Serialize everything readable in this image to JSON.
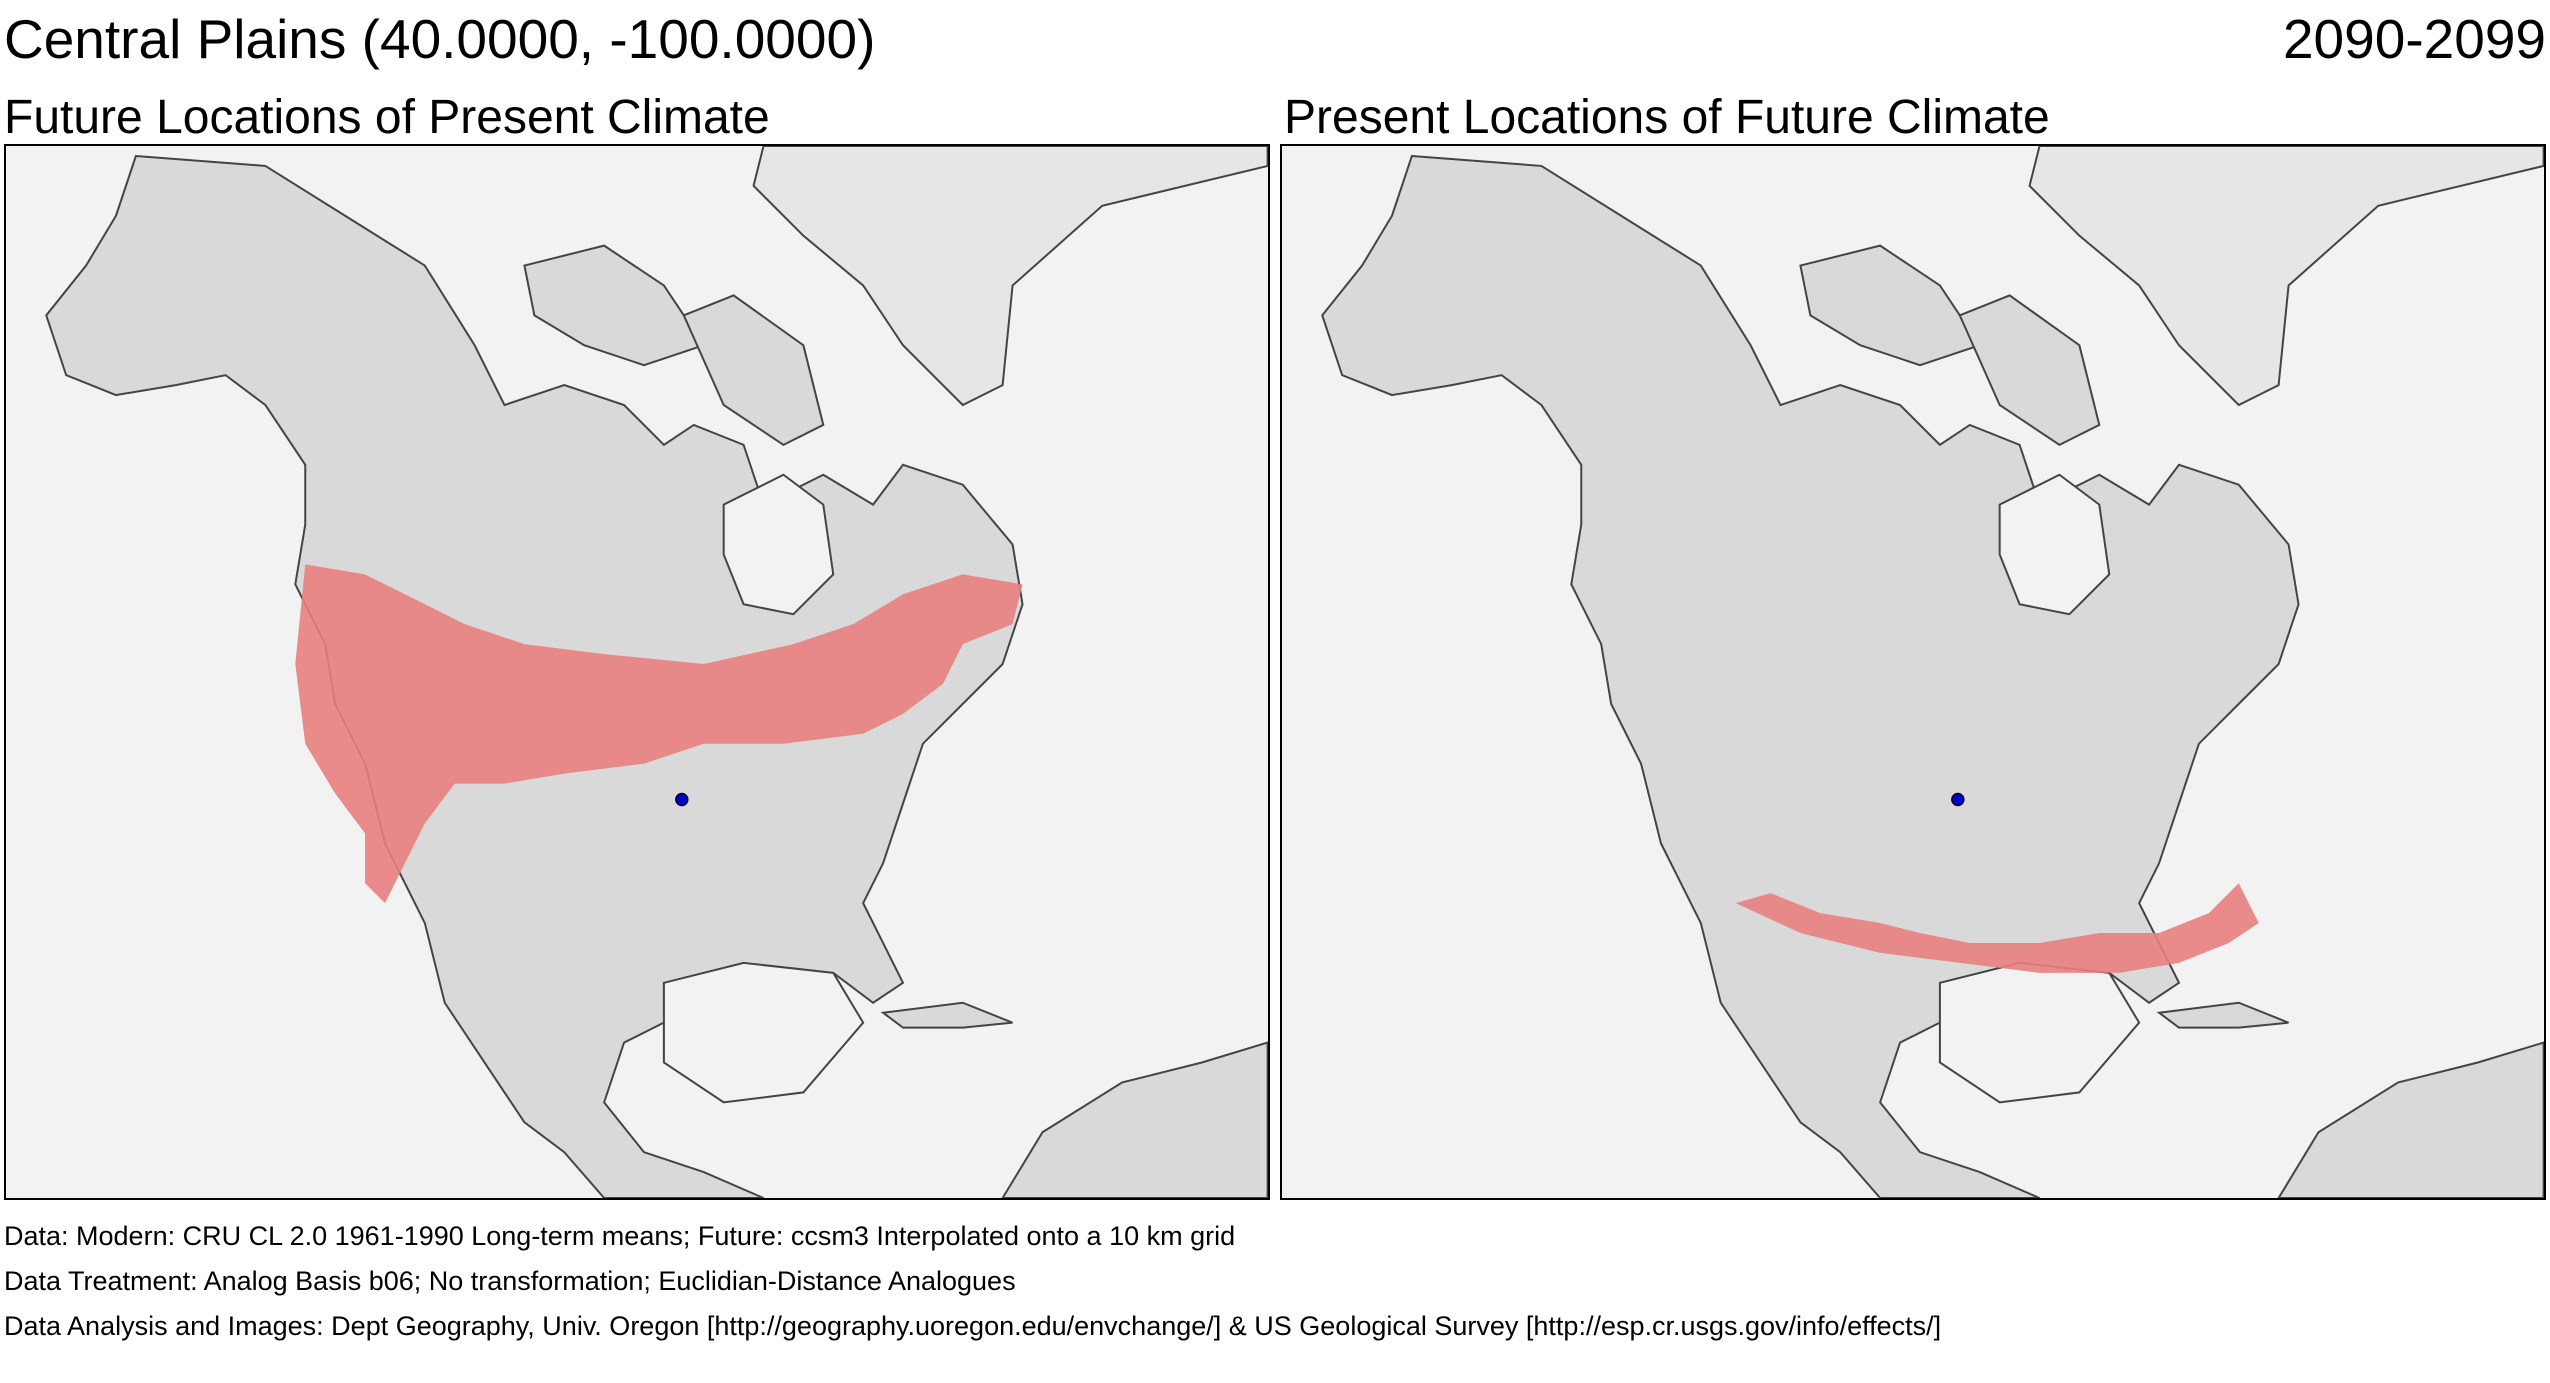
{
  "header": {
    "location_title": "Central Plains  (40.0000, -100.0000)",
    "period": "2090-2099"
  },
  "panels": [
    {
      "title": "Future Locations of Present Climate",
      "highlight_color": "#e88080",
      "point_color": "#0000cc"
    },
    {
      "title": "Present Locations of Future Climate",
      "highlight_color": "#e88080",
      "point_color": "#0000cc"
    }
  ],
  "map_colors": {
    "ocean": "#f2f2f2",
    "land": "#d9d9d9",
    "border": "#444444"
  },
  "footer": {
    "data": "Data:  Modern: CRU CL 2.0 1961-1990 Long-term means; Future: ccsm3 Interpolated onto a 10 km grid",
    "treatment": "Data Treatment:  Analog Basis b06; No transformation; Euclidian-Distance Analogues",
    "analysis": "Data Analysis and Images:  Dept Geography, Univ. Oregon [http://geography.uoregon.edu/envchange/] & US Geological Survey [http://esp.cr.usgs.gov/info/effects/]"
  }
}
